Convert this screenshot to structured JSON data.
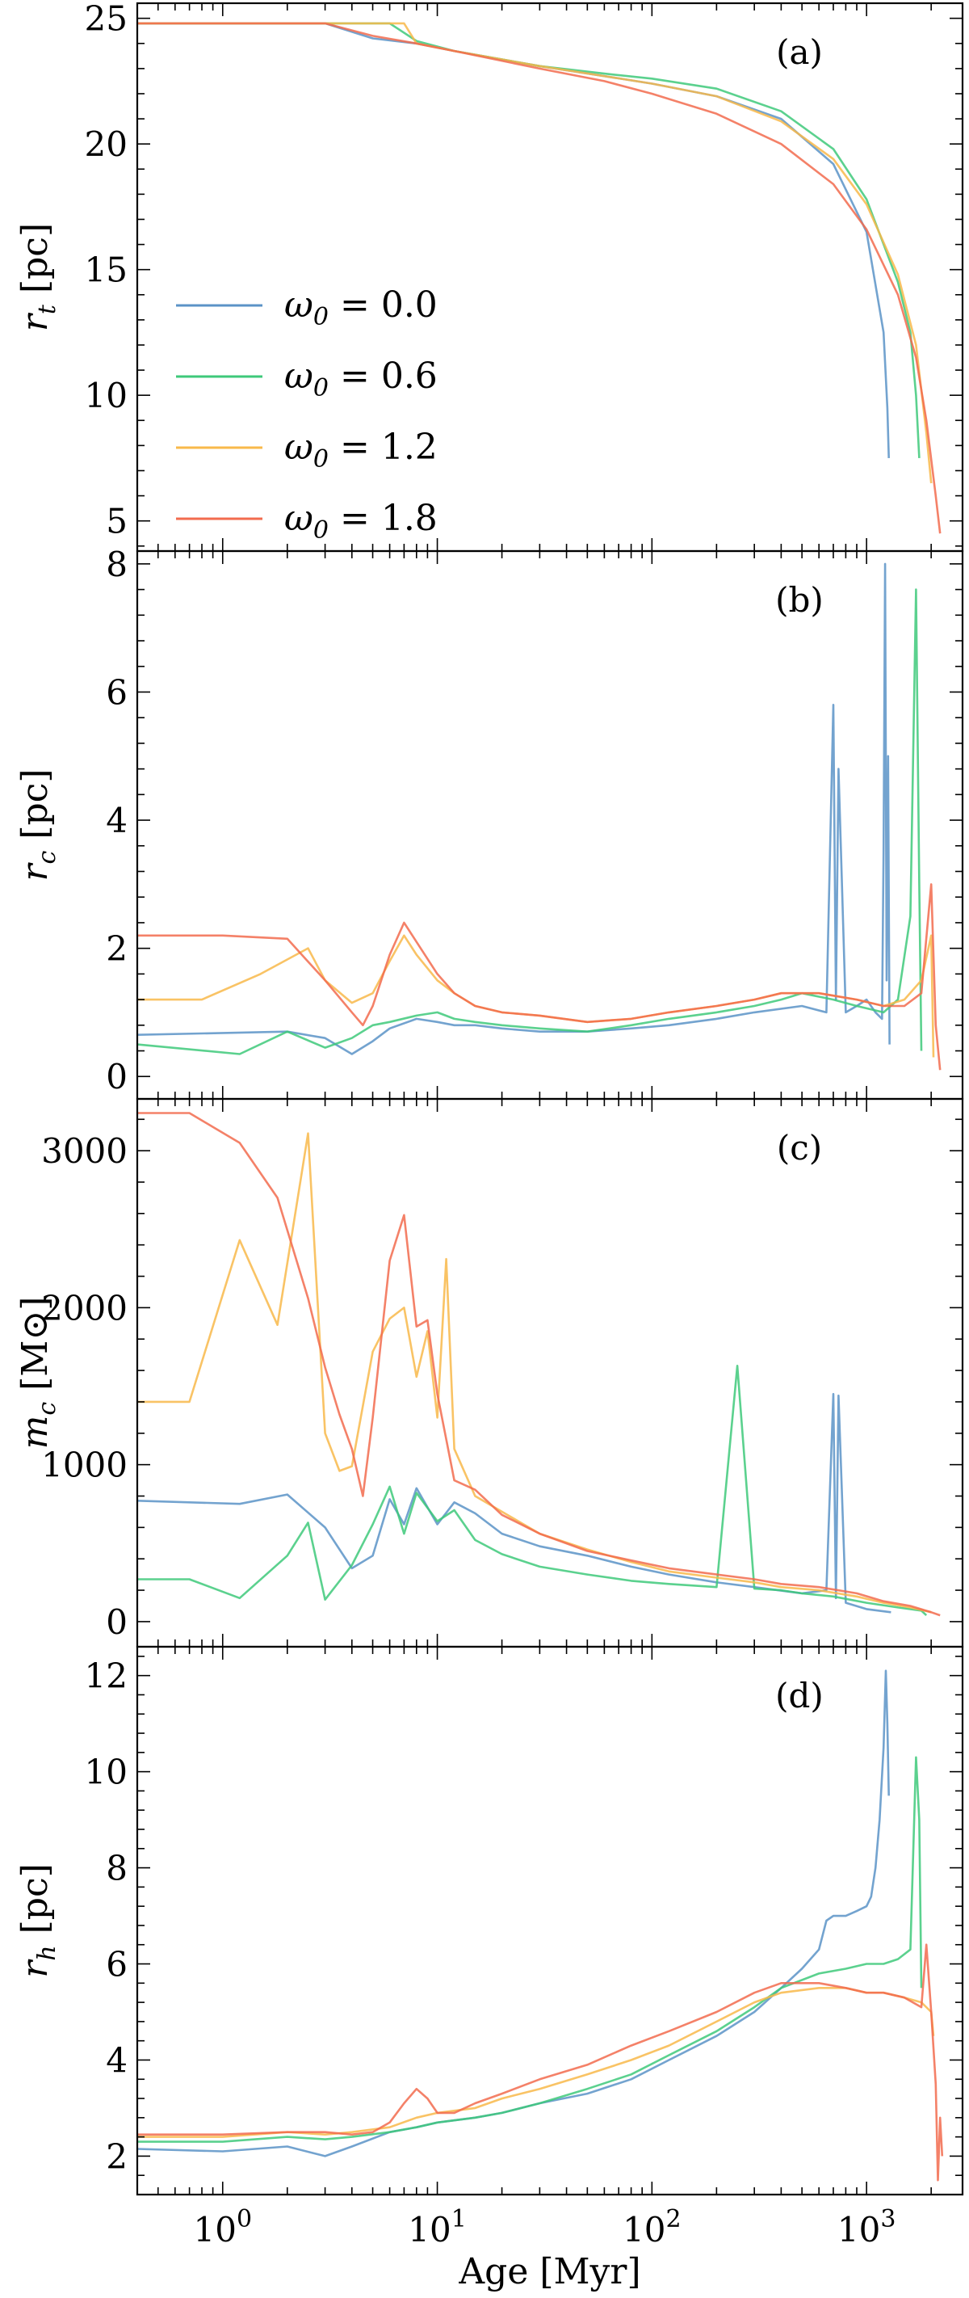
{
  "colors": {
    "omega0_0.0": "#5b93c7",
    "omega0_0.6": "#3ec97a",
    "omega0_1.2": "#f8b94a",
    "omega0_1.8": "#f26b4e"
  },
  "chart_data": {
    "type": "line",
    "shared_x": {
      "label": "Age [Myr]",
      "scale": "log",
      "lim": [
        0.4,
        2800
      ],
      "tick_labels": [
        "10^0",
        "10^1",
        "10^2",
        "10^3"
      ],
      "tick_values": [
        1,
        10,
        100,
        1000
      ]
    },
    "legend": {
      "placement": "left-center of panel (a)",
      "entries": [
        "ω0 = 0.0",
        "ω0 = 0.6",
        "ω0 = 1.2",
        "ω0 = 1.8"
      ]
    },
    "panels": [
      {
        "letter": "(a)",
        "ylabel": "r_t [pc]",
        "ylim": [
          3.8,
          25.6
        ],
        "yticks": [
          5,
          10,
          15,
          20,
          25
        ],
        "series": [
          {
            "name": "ω0 = 0.0",
            "color_key": "omega0_0.0",
            "x": [
              0.4,
              3,
              5,
              8,
              12,
              30,
              60,
              100,
              200,
              400,
              700,
              1000,
              1200,
              1250,
              1270
            ],
            "y": [
              24.8,
              24.8,
              24.2,
              24.0,
              23.7,
              23.1,
              22.7,
              22.4,
              21.9,
              21.0,
              19.2,
              16.5,
              12.5,
              9.5,
              7.5
            ]
          },
          {
            "name": "ω0 = 0.6",
            "color_key": "omega0_0.6",
            "x": [
              0.4,
              4,
              6,
              8,
              12,
              30,
              60,
              100,
              200,
              400,
              700,
              1000,
              1400,
              1600,
              1700,
              1760
            ],
            "y": [
              24.8,
              24.8,
              24.8,
              24.1,
              23.7,
              23.1,
              22.8,
              22.6,
              22.2,
              21.3,
              19.8,
              17.8,
              14.5,
              12.5,
              10.0,
              7.5
            ]
          },
          {
            "name": "ω0 = 1.2",
            "color_key": "omega0_1.2",
            "x": [
              0.4,
              7,
              8,
              12,
              30,
              60,
              100,
              200,
              400,
              700,
              1000,
              1400,
              1700,
              1900,
              2000
            ],
            "y": [
              24.8,
              24.8,
              24.0,
              23.7,
              23.1,
              22.7,
              22.4,
              21.9,
              20.9,
              19.4,
              17.6,
              14.8,
              12.0,
              8.5,
              6.5
            ]
          },
          {
            "name": "ω0 = 1.8",
            "color_key": "omega0_1.8",
            "x": [
              0.4,
              3,
              5,
              8,
              12,
              30,
              60,
              100,
              200,
              400,
              700,
              1000,
              1400,
              1700,
              1900,
              2100,
              2200
            ],
            "y": [
              24.8,
              24.8,
              24.3,
              24.0,
              23.7,
              23.0,
              22.5,
              22.0,
              21.2,
              20.0,
              18.4,
              16.6,
              14.0,
              11.5,
              9.0,
              6.0,
              4.5
            ]
          }
        ]
      },
      {
        "letter": "(b)",
        "ylabel": "r_c [pc]",
        "ylim": [
          -0.35,
          8.2
        ],
        "yticks": [
          0,
          2,
          4,
          6,
          8
        ],
        "series": [
          {
            "name": "ω0 = 0.0",
            "color_key": "omega0_0.0",
            "x": [
              0.4,
              2,
              3,
              4,
              5,
              6,
              8,
              10,
              12,
              15,
              20,
              30,
              50,
              80,
              120,
              200,
              300,
              500,
              650,
              700,
              720,
              740,
              800,
              900,
              1000,
              1100,
              1180,
              1200,
              1220,
              1240,
              1260,
              1280
            ],
            "y": [
              0.65,
              0.7,
              0.6,
              0.35,
              0.55,
              0.75,
              0.9,
              0.85,
              0.8,
              0.8,
              0.75,
              0.7,
              0.7,
              0.75,
              0.8,
              0.9,
              1.0,
              1.1,
              1.0,
              5.8,
              1.2,
              4.8,
              1.0,
              1.1,
              1.2,
              1.0,
              0.9,
              3.5,
              8.0,
              1.5,
              5.0,
              0.5
            ]
          },
          {
            "name": "ω0 = 0.6",
            "color_key": "omega0_0.6",
            "x": [
              0.4,
              1.2,
              2,
              3,
              4,
              5,
              6,
              8,
              10,
              12,
              15,
              20,
              30,
              50,
              80,
              120,
              200,
              300,
              400,
              500,
              700,
              900,
              1200,
              1400,
              1600,
              1700,
              1760,
              1800
            ],
            "y": [
              0.5,
              0.35,
              0.7,
              0.45,
              0.6,
              0.8,
              0.85,
              0.95,
              1.0,
              0.9,
              0.85,
              0.8,
              0.75,
              0.7,
              0.8,
              0.9,
              1.0,
              1.1,
              1.2,
              1.3,
              1.2,
              1.1,
              1.0,
              1.2,
              2.5,
              7.6,
              3.0,
              0.4
            ]
          },
          {
            "name": "ω0 = 1.2",
            "color_key": "omega0_1.2",
            "x": [
              0.4,
              0.8,
              1.5,
              2.5,
              3,
              4,
              5,
              6,
              7,
              8,
              10,
              12,
              15,
              20,
              30,
              50,
              80,
              120,
              200,
              300,
              400,
              600,
              900,
              1200,
              1500,
              1800,
              2000,
              2050
            ],
            "y": [
              1.2,
              1.2,
              1.6,
              2.0,
              1.5,
              1.15,
              1.3,
              1.8,
              2.2,
              1.9,
              1.5,
              1.3,
              1.1,
              1.0,
              0.95,
              0.85,
              0.9,
              1.0,
              1.1,
              1.2,
              1.3,
              1.3,
              1.2,
              1.1,
              1.2,
              1.5,
              2.2,
              0.3
            ]
          },
          {
            "name": "ω0 = 1.8",
            "color_key": "omega0_1.8",
            "x": [
              0.4,
              1,
              2,
              3,
              4,
              4.5,
              5,
              6,
              7,
              8,
              10,
              12,
              15,
              20,
              30,
              50,
              80,
              120,
              200,
              300,
              400,
              600,
              900,
              1200,
              1500,
              1800,
              2000,
              2100,
              2200
            ],
            "y": [
              2.2,
              2.2,
              2.15,
              1.5,
              1.0,
              0.8,
              1.1,
              1.9,
              2.4,
              2.1,
              1.6,
              1.3,
              1.1,
              1.0,
              0.95,
              0.85,
              0.9,
              1.0,
              1.1,
              1.2,
              1.3,
              1.3,
              1.2,
              1.1,
              1.1,
              1.3,
              3.0,
              0.8,
              0.1
            ]
          }
        ]
      },
      {
        "letter": "(c)",
        "ylabel": "m_c [M⊙]",
        "ylim": [
          -160,
          3330
        ],
        "yticks": [
          0,
          1000,
          2000,
          3000
        ],
        "series": [
          {
            "name": "ω0 = 0.0",
            "color_key": "omega0_0.0",
            "x": [
              0.4,
              1.2,
              2,
              3,
              4,
              5,
              6,
              7,
              8,
              10,
              12,
              15,
              20,
              30,
              50,
              80,
              120,
              200,
              300,
              500,
              650,
              700,
              720,
              740,
              800,
              1000,
              1300
            ],
            "y": [
              770,
              750,
              810,
              600,
              340,
              420,
              780,
              620,
              850,
              620,
              760,
              690,
              560,
              480,
              420,
              350,
              300,
              250,
              220,
              180,
              200,
              1450,
              150,
              1440,
              120,
              80,
              60
            ]
          },
          {
            "name": "ω0 = 0.6",
            "color_key": "omega0_0.6",
            "x": [
              0.4,
              0.7,
              1.2,
              2,
              2.5,
              3,
              4,
              5,
              6,
              7,
              8,
              10,
              12,
              15,
              20,
              30,
              50,
              80,
              120,
              200,
              250,
              300,
              400,
              500,
              700,
              1000,
              1400,
              1800,
              1900
            ],
            "y": [
              270,
              270,
              150,
              420,
              630,
              140,
              360,
              620,
              860,
              560,
              820,
              640,
              710,
              520,
              430,
              350,
              300,
              260,
              240,
              220,
              1630,
              210,
              200,
              180,
              160,
              120,
              90,
              70,
              40
            ]
          },
          {
            "name": "ω0 = 1.2",
            "color_key": "omega0_1.2",
            "x": [
              0.4,
              0.7,
              1.2,
              1.8,
              2.5,
              3,
              3.5,
              4,
              5,
              6,
              7,
              8,
              9,
              10,
              11,
              12,
              15,
              20,
              30,
              50,
              80,
              120,
              200,
              300,
              400,
              600,
              900,
              1200,
              1600,
              2000
            ],
            "y": [
              1400,
              1400,
              2430,
              1890,
              3110,
              1200,
              960,
              990,
              1720,
              1930,
              2000,
              1560,
              1850,
              1300,
              2310,
              1100,
              800,
              700,
              560,
              460,
              380,
              320,
              280,
              250,
              220,
              200,
              160,
              120,
              90,
              60
            ]
          },
          {
            "name": "ω0 = 1.8",
            "color_key": "omega0_1.8",
            "x": [
              0.4,
              0.7,
              1.2,
              1.8,
              2.5,
              3,
              3.5,
              4,
              4.5,
              5,
              6,
              7,
              8,
              9,
              10,
              12,
              15,
              20,
              30,
              50,
              80,
              120,
              200,
              300,
              400,
              600,
              900,
              1200,
              1600,
              2000,
              2200
            ],
            "y": [
              3240,
              3240,
              3050,
              2700,
              2060,
              1620,
              1320,
              1100,
              800,
              1300,
              2300,
              2590,
              1880,
              1920,
              1450,
              900,
              840,
              680,
              560,
              450,
              390,
              340,
              300,
              270,
              240,
              220,
              180,
              130,
              100,
              60,
              40
            ]
          }
        ]
      },
      {
        "letter": "(d)",
        "ylabel": "r_h [pc]",
        "ylim": [
          1.2,
          12.6
        ],
        "yticks": [
          2,
          4,
          6,
          8,
          10,
          12
        ],
        "series": [
          {
            "name": "ω0 = 0.0",
            "color_key": "omega0_0.0",
            "x": [
              0.4,
              1,
              2,
              3,
              4,
              6,
              8,
              10,
              15,
              20,
              30,
              50,
              80,
              120,
              200,
              300,
              400,
              500,
              600,
              650,
              700,
              800,
              900,
              1000,
              1050,
              1100,
              1150,
              1200,
              1230,
              1250,
              1270
            ],
            "y": [
              2.15,
              2.1,
              2.2,
              2.0,
              2.2,
              2.5,
              2.6,
              2.7,
              2.8,
              2.9,
              3.1,
              3.3,
              3.6,
              4.0,
              4.5,
              5.0,
              5.5,
              5.9,
              6.3,
              6.9,
              7.0,
              7.0,
              7.1,
              7.2,
              7.4,
              8.0,
              9.0,
              10.5,
              12.1,
              11.0,
              9.5
            ]
          },
          {
            "name": "ω0 = 0.6",
            "color_key": "omega0_0.6",
            "x": [
              0.4,
              1,
              2,
              3,
              4,
              6,
              8,
              10,
              15,
              20,
              30,
              50,
              80,
              120,
              200,
              300,
              400,
              600,
              800,
              1000,
              1200,
              1400,
              1600,
              1700,
              1760,
              1800
            ],
            "y": [
              2.3,
              2.3,
              2.4,
              2.35,
              2.4,
              2.5,
              2.6,
              2.7,
              2.8,
              2.9,
              3.1,
              3.4,
              3.7,
              4.1,
              4.6,
              5.1,
              5.5,
              5.8,
              5.9,
              6.0,
              6.0,
              6.1,
              6.3,
              10.3,
              9.0,
              5.5
            ]
          },
          {
            "name": "ω0 = 1.2",
            "color_key": "omega0_1.2",
            "x": [
              0.4,
              1,
              2,
              3,
              4,
              6,
              8,
              10,
              15,
              20,
              30,
              50,
              80,
              120,
              200,
              300,
              400,
              600,
              800,
              1000,
              1200,
              1500,
              1800,
              2000,
              2050
            ],
            "y": [
              2.4,
              2.4,
              2.5,
              2.45,
              2.5,
              2.6,
              2.8,
              2.9,
              3.0,
              3.2,
              3.4,
              3.7,
              4.0,
              4.3,
              4.8,
              5.2,
              5.4,
              5.5,
              5.5,
              5.4,
              5.4,
              5.3,
              5.2,
              5.0,
              4.5
            ]
          },
          {
            "name": "ω0 = 1.8",
            "color_key": "omega0_1.8",
            "x": [
              0.4,
              1,
              2,
              3,
              4,
              5,
              6,
              7,
              8,
              9,
              10,
              12,
              15,
              20,
              30,
              50,
              80,
              120,
              200,
              300,
              400,
              600,
              800,
              1000,
              1200,
              1500,
              1800,
              1900,
              2000,
              2100,
              2150,
              2200,
              2250
            ],
            "y": [
              2.45,
              2.45,
              2.5,
              2.5,
              2.45,
              2.5,
              2.7,
              3.1,
              3.4,
              3.2,
              2.9,
              2.9,
              3.1,
              3.3,
              3.6,
              3.9,
              4.3,
              4.6,
              5.0,
              5.4,
              5.6,
              5.6,
              5.5,
              5.4,
              5.4,
              5.3,
              5.1,
              6.4,
              5.0,
              3.5,
              1.5,
              2.8,
              2.0
            ]
          }
        ]
      }
    ]
  }
}
